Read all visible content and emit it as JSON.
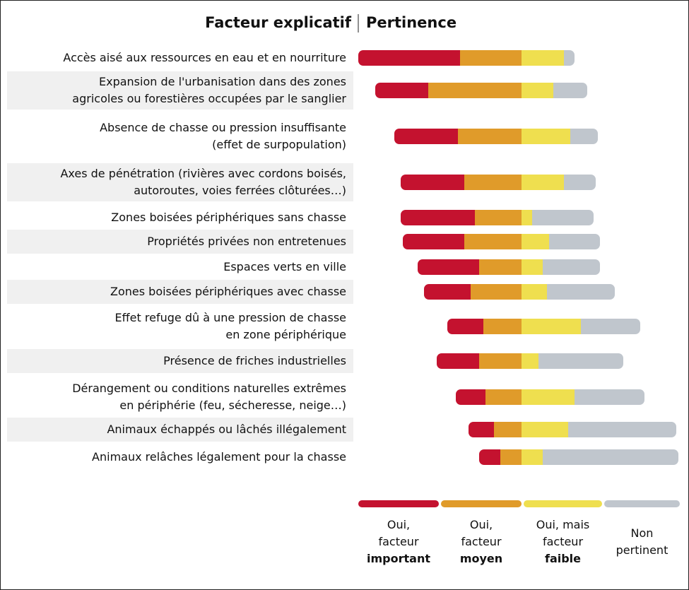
{
  "chart_data": {
    "type": "diverging_bar",
    "header_left": "Facteur explicatif",
    "header_right": "Pertinence",
    "categories": [
      "Accès aisé aux ressources en eau et en nourriture",
      "Expansion de l'urbanisation dans des zones\nagricoles ou forestières occupées par le sanglier",
      "Absence de chasse ou pression insuffisante\n(effet de surpopulation)",
      "Axes de pénétration (rivières avec cordons boisés,\nautoroutes, voies ferrées clôturées…)",
      "Zones boisées périphériques sans chasse",
      "Propriétés privées non entretenues",
      "Espaces verts en ville",
      "Zones boisées périphériques avec chasse",
      "Effet refuge dû à une pression de chasse\nen zone périphérique",
      "Présence de friches industrielles",
      "Dérangement ou conditions naturelles extrêmes\nen périphérie (feu, sécheresse, neige…)",
      "Animaux échappés ou lâchés illégalement",
      "Animaux relâches légalement pour la chasse"
    ],
    "series": [
      {
        "name": "Oui,\nfacteur\nimportant",
        "color": "#c4122f",
        "values": [
          48,
          25,
          30,
          30,
          35,
          29,
          29,
          22,
          17,
          20,
          14,
          12,
          10
        ]
      },
      {
        "name": "Oui,\nfacteur\nmoyen",
        "color": "#e09b2a",
        "values": [
          29,
          44,
          30,
          27,
          22,
          27,
          20,
          24,
          18,
          20,
          17,
          13,
          10
        ]
      },
      {
        "name": "Oui, mais\nfacteur\nfaible",
        "color": "#efdf4f",
        "values": [
          20,
          15,
          23,
          20,
          5,
          13,
          10,
          12,
          28,
          8,
          25,
          22,
          10
        ]
      },
      {
        "name": "Non\npertinent",
        "color": "#c0c6cd",
        "values": [
          5,
          16,
          13,
          15,
          29,
          24,
          27,
          32,
          28,
          40,
          33,
          51,
          64
        ]
      }
    ]
  }
}
